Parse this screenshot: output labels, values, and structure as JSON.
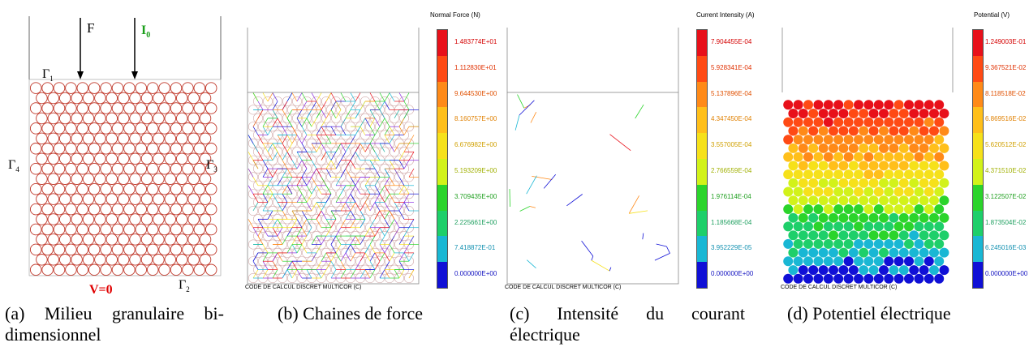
{
  "figure": {
    "panel_a": {
      "caption": "(a) Milieu granulaire bi-dimensionnel",
      "caption_line1": "(a) Milieu granulaire bi-",
      "caption_line2": "dimensionnel",
      "force_label": "F",
      "current_label": "I",
      "current_subscript": "0",
      "voltage_label": "V=0",
      "gamma1": "Γ",
      "gamma1_sub": "1",
      "gamma2": "Γ",
      "gamma2_sub": "2",
      "gamma3": "Γ",
      "gamma3_sub": "3",
      "gamma4": "Γ",
      "gamma4_sub": "4",
      "particle_color": "#c0392b"
    },
    "panel_b": {
      "caption": "(b) Chaines de force",
      "colorbar_title": "Normal Force (N)",
      "colorbar_labels": [
        "1.483774E+01",
        "1.112830E+01",
        "9.644530E+00",
        "8.160757E+00",
        "6.676982E+00",
        "5.193209E+00",
        "3.709435E+00",
        "2.225661E+00",
        "7.418872E-01",
        "0.000000E+00"
      ],
      "code_label": "CODE DE CALCUL DISCRET MULTICOR (C)"
    },
    "panel_c": {
      "caption_line1": "(c) Intensité du courant",
      "caption_line2": "électrique",
      "colorbar_title": "Current Intensity (A)",
      "colorbar_labels": [
        "7.904455E-04",
        "5.928341E-04",
        "5.137896E-04",
        "4.347450E-04",
        "3.557005E-04",
        "2.766559E-04",
        "1.976114E-04",
        "1.185668E-04",
        "3.952229E-05",
        "0.000000E+00"
      ],
      "code_label": "CODE DE CALCUL DISCRET MULTICOR (C)"
    },
    "panel_d": {
      "caption": "(d) Potentiel électrique",
      "colorbar_title": "Potential (V)",
      "colorbar_labels": [
        "1.249003E-01",
        "9.367521E-02",
        "8.118518E-02",
        "6.869516E-02",
        "5.620512E-02",
        "4.371510E-02",
        "3.122507E-02",
        "1.873504E-02",
        "6.245016E-03",
        "0.000000E+00"
      ],
      "code_label": "CODE DE CALCUL DISCRET MULTICOR (C)"
    },
    "colorbar_colors": [
      "#e8101a",
      "#ff4a14",
      "#ff8a18",
      "#ffbf1a",
      "#f6e11a",
      "#d2f21a",
      "#2bd42b",
      "#1ecf6a",
      "#19b7d4",
      "#1010d6"
    ],
    "label_colors": [
      "#d40000",
      "#e03000",
      "#e05000",
      "#e08000",
      "#d0a000",
      "#a0b000",
      "#20a020",
      "#20a060",
      "#1090b0",
      "#1010c0"
    ]
  }
}
